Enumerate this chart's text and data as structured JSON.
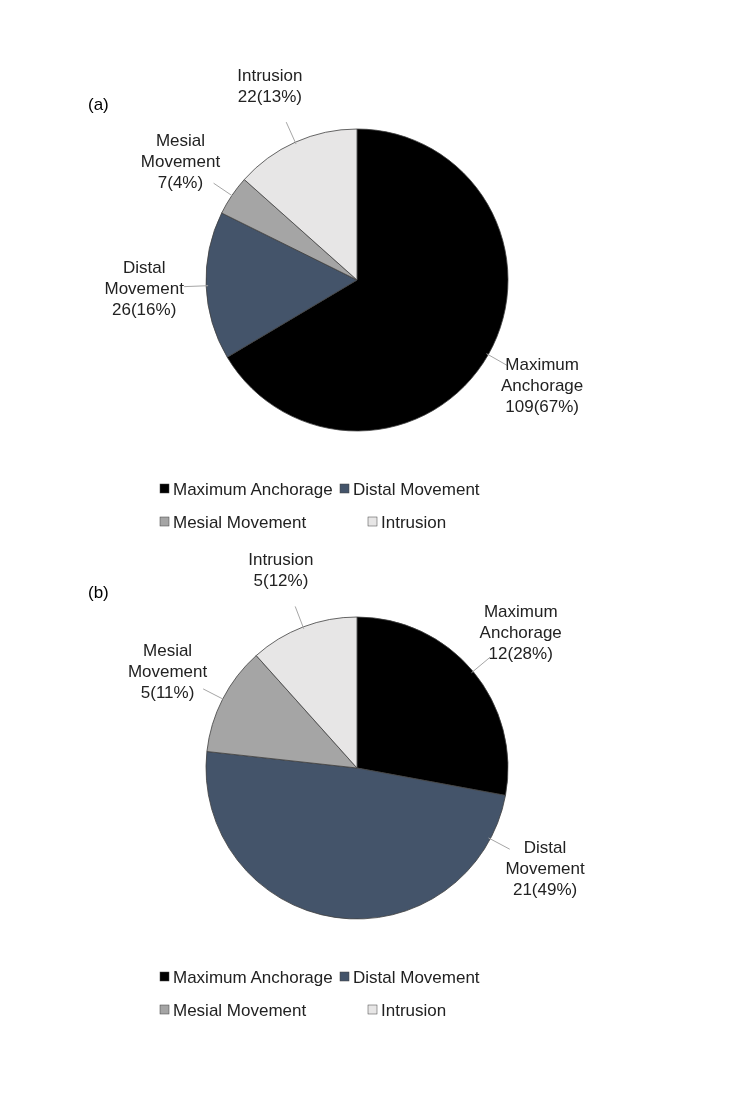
{
  "chart_data": [
    {
      "type": "pie",
      "title": "(a)",
      "categories": [
        "Maximum Anchorage",
        "Distal Movement",
        "Mesial Movement",
        "Intrusion"
      ],
      "values": [
        109,
        26,
        7,
        22
      ],
      "colors": [
        "#000000",
        "#44546a",
        "#a5a5a5",
        "#e7e6e6"
      ],
      "value_labels": [
        "109(67%)",
        "26(16%)",
        "7(4%)",
        "22(13%)"
      ],
      "legend": "bottom"
    },
    {
      "type": "pie",
      "title": "(b)",
      "categories": [
        "Maximum Anchorage",
        "Distal Movement",
        "Mesial Movement",
        "Intrusion"
      ],
      "values": [
        12,
        21,
        5,
        5
      ],
      "colors": [
        "#000000",
        "#44546a",
        "#a5a5a5",
        "#e7e6e6"
      ],
      "value_labels": [
        "12(28%)",
        "21(49%)",
        "5(11%)",
        "5(12%)"
      ],
      "legend": "bottom"
    }
  ]
}
